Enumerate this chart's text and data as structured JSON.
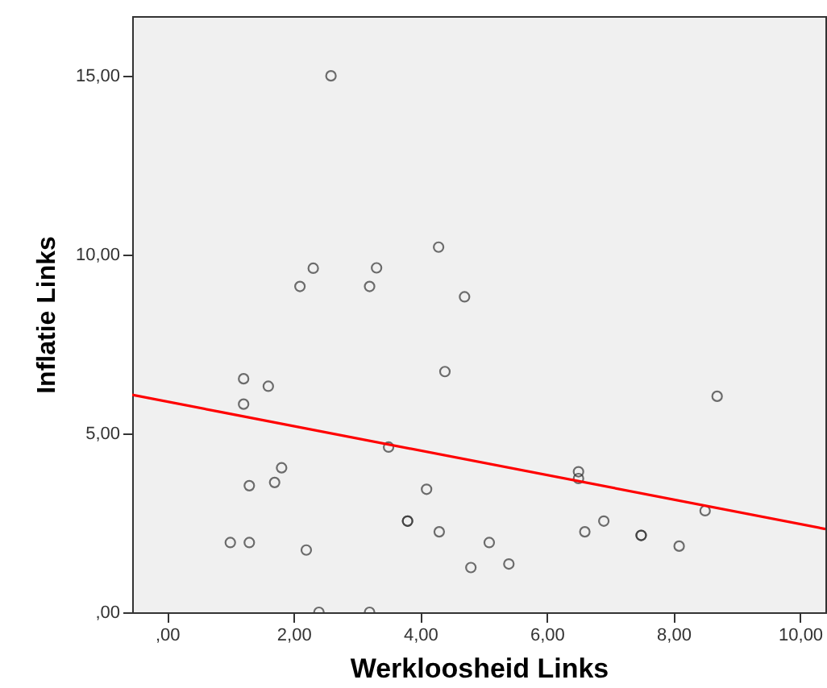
{
  "chart_data": {
    "type": "scatter",
    "xlabel": "Werkloosheid Links",
    "ylabel": "Inflatie Links",
    "xlim": [
      -0.55,
      10.4
    ],
    "ylim": [
      0,
      16.67
    ],
    "xticks": [
      {
        "value": 0,
        "label": ",00"
      },
      {
        "value": 2,
        "label": "2,00"
      },
      {
        "value": 4,
        "label": "4,00"
      },
      {
        "value": 6,
        "label": "6,00"
      },
      {
        "value": 8,
        "label": "8,00"
      },
      {
        "value": 10,
        "label": "10,00"
      }
    ],
    "yticks": [
      {
        "value": 0,
        "label": ",00"
      },
      {
        "value": 5,
        "label": "5,00"
      },
      {
        "value": 10,
        "label": "10,00"
      },
      {
        "value": 15,
        "label": "15,00"
      }
    ],
    "marker": "circle",
    "series": [
      {
        "color": "#333333",
        "x": [
          2.59,
          2.31,
          3.31,
          2.1,
          3.2,
          4.29,
          4.7,
          1.21,
          1.6,
          1.21,
          4.39,
          8.69,
          3.5,
          1.81,
          1.7,
          1.3,
          6.5,
          6.5,
          4.1,
          3.8,
          3.8,
          8.5,
          6.9,
          4.3,
          6.6,
          7.49,
          7.49,
          1.0,
          1.3,
          5.09,
          8.09,
          2.2,
          5.4,
          4.8,
          2.4,
          3.2
        ],
        "values": [
          15.0,
          9.62,
          9.63,
          9.11,
          9.11,
          10.21,
          8.82,
          6.53,
          6.32,
          5.82,
          6.73,
          6.04,
          4.62,
          4.04,
          3.63,
          3.54,
          3.93,
          3.74,
          3.44,
          2.55,
          2.55,
          2.84,
          2.55,
          2.25,
          2.25,
          2.15,
          2.15,
          1.95,
          1.95,
          1.95,
          1.85,
          1.74,
          1.35,
          1.25,
          0,
          0
        ]
      },
      {
        "type": "line",
        "marker": "none",
        "color": "#ff0000",
        "x": [
          -0.55,
          10.4
        ],
        "values": [
          6.08,
          2.33
        ]
      }
    ]
  }
}
